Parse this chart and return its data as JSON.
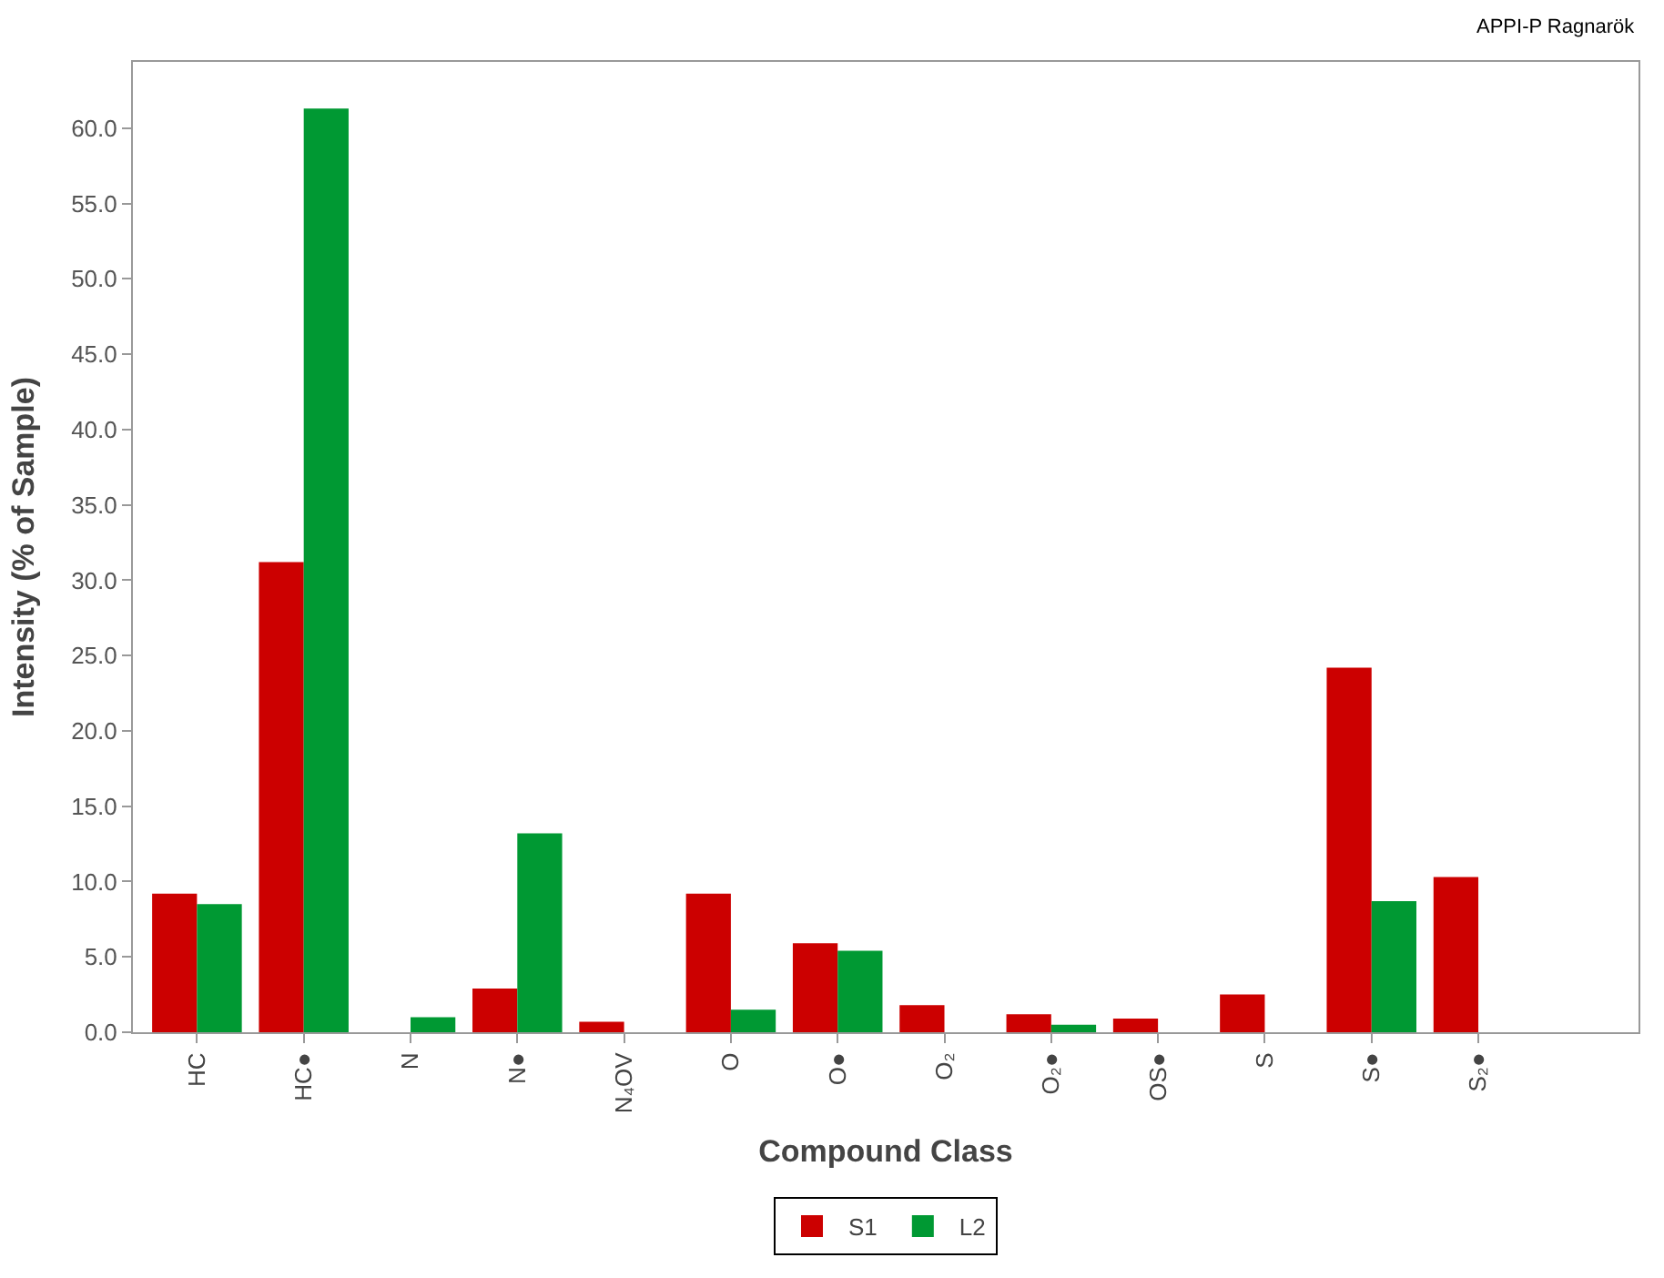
{
  "chart_data": {
    "type": "bar",
    "annotations": [
      "APPI-P Ragnarök"
    ],
    "xlabel": "Compound Class",
    "ylabel": "Intensity (% of Sample)",
    "categories": [
      "HC",
      "HC●",
      "N",
      "N●",
      "N₄OV",
      "O",
      "O●",
      "O₂",
      "O₂●",
      "OS●",
      "S",
      "S●",
      "S₂●"
    ],
    "series": [
      {
        "name": "S1",
        "color": "#cc0000",
        "values": [
          9.2,
          31.2,
          null,
          2.9,
          0.7,
          9.2,
          5.9,
          1.8,
          1.2,
          0.9,
          2.5,
          24.2,
          10.3
        ]
      },
      {
        "name": "L2",
        "color": "#009933",
        "values": [
          8.5,
          61.3,
          1.0,
          13.2,
          null,
          1.5,
          5.4,
          null,
          0.5,
          null,
          null,
          8.7,
          null
        ]
      }
    ],
    "ylim": [
      0,
      64.4
    ],
    "yticks": [
      {
        "value": 0,
        "label": "0.0"
      },
      {
        "value": 5,
        "label": "5.0"
      },
      {
        "value": 10,
        "label": "10.0"
      },
      {
        "value": 15,
        "label": "15.0"
      },
      {
        "value": 20,
        "label": "20.0"
      },
      {
        "value": 25,
        "label": "25.0"
      },
      {
        "value": 30,
        "label": "30.0"
      },
      {
        "value": 35,
        "label": "35.0"
      },
      {
        "value": 40,
        "label": "40.0"
      },
      {
        "value": 45,
        "label": "45.0"
      },
      {
        "value": 50,
        "label": "50.0"
      },
      {
        "value": 55,
        "label": "55.0"
      },
      {
        "value": 60,
        "label": "60.0"
      }
    ],
    "legend": "bottom"
  }
}
